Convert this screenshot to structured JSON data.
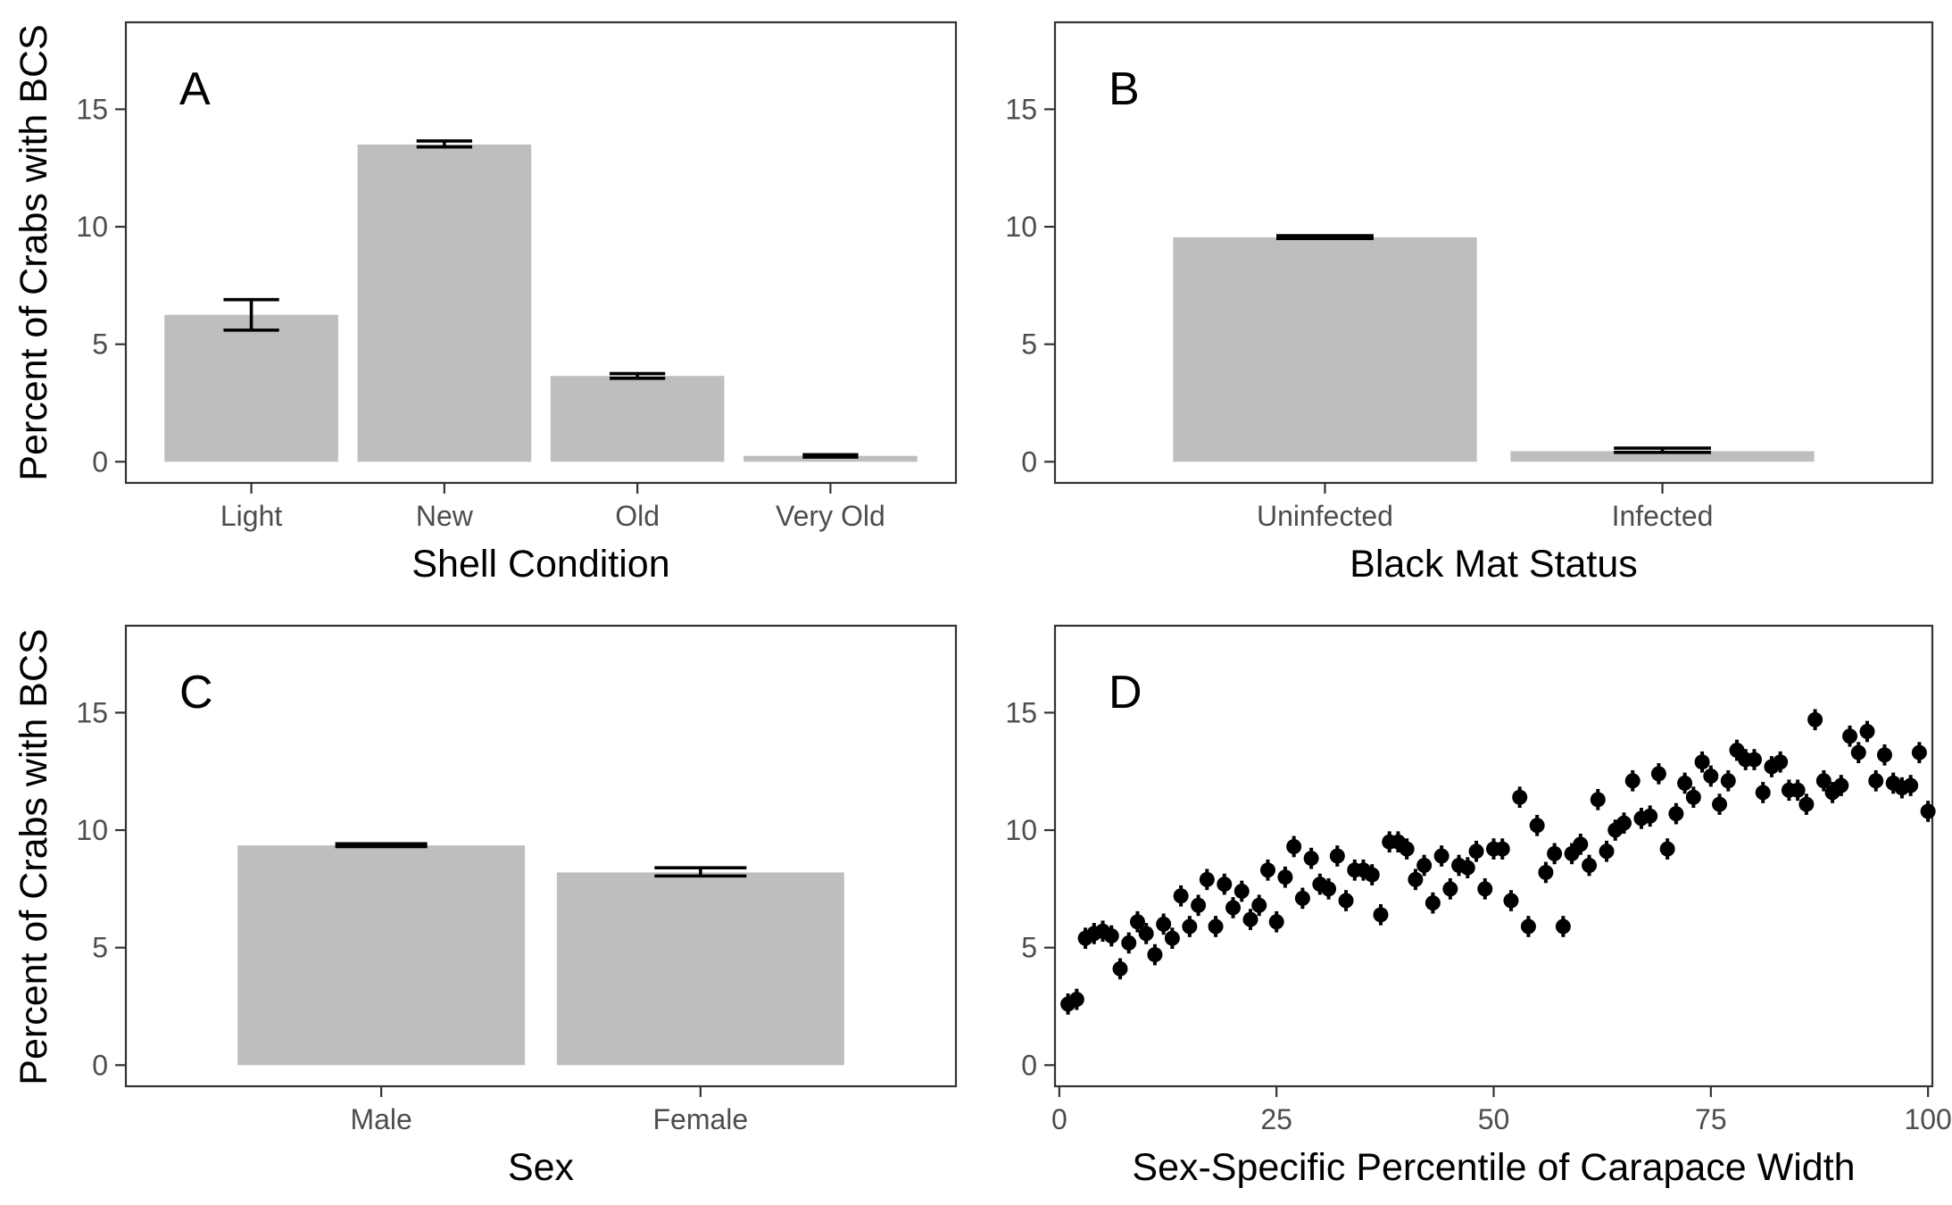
{
  "y_axis_label": "Percent of Crabs with BCS",
  "colors": {
    "bar": "#bebebe",
    "point": "#000000",
    "frame": "#333333"
  },
  "chart_data": [
    {
      "tag": "A",
      "type": "bar",
      "xlabel": "Shell Condition",
      "ylabel": "Percent of Crabs with BCS",
      "ylim": [
        -0.9,
        18.7
      ],
      "yticks": [
        0,
        5,
        10,
        15
      ],
      "categories": [
        "Light",
        "New",
        "Old",
        "Very Old"
      ],
      "values": [
        6.25,
        13.5,
        3.65,
        0.25
      ],
      "err_low": [
        5.6,
        13.4,
        3.55,
        0.2
      ],
      "err_high": [
        6.9,
        13.65,
        3.75,
        0.3
      ],
      "grid": false
    },
    {
      "tag": "B",
      "type": "bar",
      "xlabel": "Black Mat Status",
      "ylabel": "",
      "ylim": [
        -0.9,
        18.7
      ],
      "yticks": [
        0,
        5,
        10,
        15
      ],
      "categories": [
        "Uninfected",
        "Infected"
      ],
      "values": [
        9.55,
        0.45
      ],
      "err_low": [
        9.5,
        0.4
      ],
      "err_high": [
        9.62,
        0.58
      ],
      "grid": false
    },
    {
      "tag": "C",
      "type": "bar",
      "xlabel": "Sex",
      "ylabel": "Percent of Crabs with BCS",
      "ylim": [
        -0.9,
        18.7
      ],
      "yticks": [
        0,
        5,
        10,
        15
      ],
      "categories": [
        "Male",
        "Female"
      ],
      "values": [
        9.35,
        8.2
      ],
      "err_low": [
        9.3,
        8.05
      ],
      "err_high": [
        9.42,
        8.4
      ],
      "grid": false
    },
    {
      "tag": "D",
      "type": "scatter",
      "xlabel": "Sex-Specific Percentile of Carapace Width",
      "ylabel": "",
      "xlim": [
        -0.5,
        100.5
      ],
      "xticks": [
        0,
        25,
        50,
        75,
        100
      ],
      "ylim": [
        -0.9,
        18.7
      ],
      "yticks": [
        0,
        5,
        10,
        15
      ],
      "err_halfwidth": 0.45,
      "x": [
        1,
        2,
        3,
        4,
        5,
        6,
        7,
        8,
        9,
        10,
        11,
        12,
        13,
        14,
        15,
        16,
        17,
        18,
        19,
        20,
        21,
        22,
        23,
        24,
        25,
        26,
        27,
        28,
        29,
        30,
        31,
        32,
        33,
        34,
        35,
        36,
        37,
        38,
        39,
        40,
        41,
        42,
        43,
        44,
        45,
        46,
        47,
        48,
        49,
        50,
        51,
        52,
        53,
        54,
        55,
        56,
        57,
        58,
        59,
        60,
        61,
        62,
        63,
        64,
        65,
        66,
        67,
        68,
        69,
        70,
        71,
        72,
        73,
        74,
        75,
        76,
        77,
        78,
        79,
        80,
        81,
        82,
        83,
        84,
        85,
        86,
        87,
        88,
        89,
        90,
        91,
        92,
        93,
        94,
        95,
        96,
        97,
        98,
        99,
        100
      ],
      "y": [
        2.6,
        2.8,
        5.4,
        5.6,
        5.7,
        5.5,
        4.1,
        5.2,
        6.1,
        5.6,
        4.7,
        6.0,
        5.4,
        7.2,
        5.9,
        6.8,
        7.9,
        5.9,
        7.7,
        6.7,
        7.4,
        6.2,
        6.8,
        8.3,
        6.1,
        8.0,
        9.3,
        7.1,
        8.8,
        7.7,
        7.5,
        8.9,
        7.0,
        8.3,
        8.3,
        8.1,
        6.4,
        9.5,
        9.5,
        9.2,
        7.9,
        8.5,
        6.9,
        8.9,
        7.5,
        8.5,
        8.4,
        9.1,
        7.5,
        9.2,
        9.2,
        7.0,
        11.4,
        5.9,
        10.2,
        8.2,
        9.0,
        5.9,
        9.0,
        9.4,
        8.5,
        11.3,
        9.1,
        10.0,
        10.3,
        12.1,
        10.5,
        10.6,
        12.4,
        9.2,
        10.7,
        12.0,
        11.4,
        12.9,
        12.3,
        11.1,
        12.1,
        13.4,
        13.0,
        13.0,
        11.6,
        12.7,
        12.9,
        11.7,
        11.7,
        11.1,
        14.7,
        12.1,
        11.6,
        11.9,
        14.0,
        13.3,
        14.2,
        12.1,
        13.2,
        12.0,
        11.8,
        11.9,
        13.3,
        10.8
      ],
      "grid": false
    }
  ]
}
